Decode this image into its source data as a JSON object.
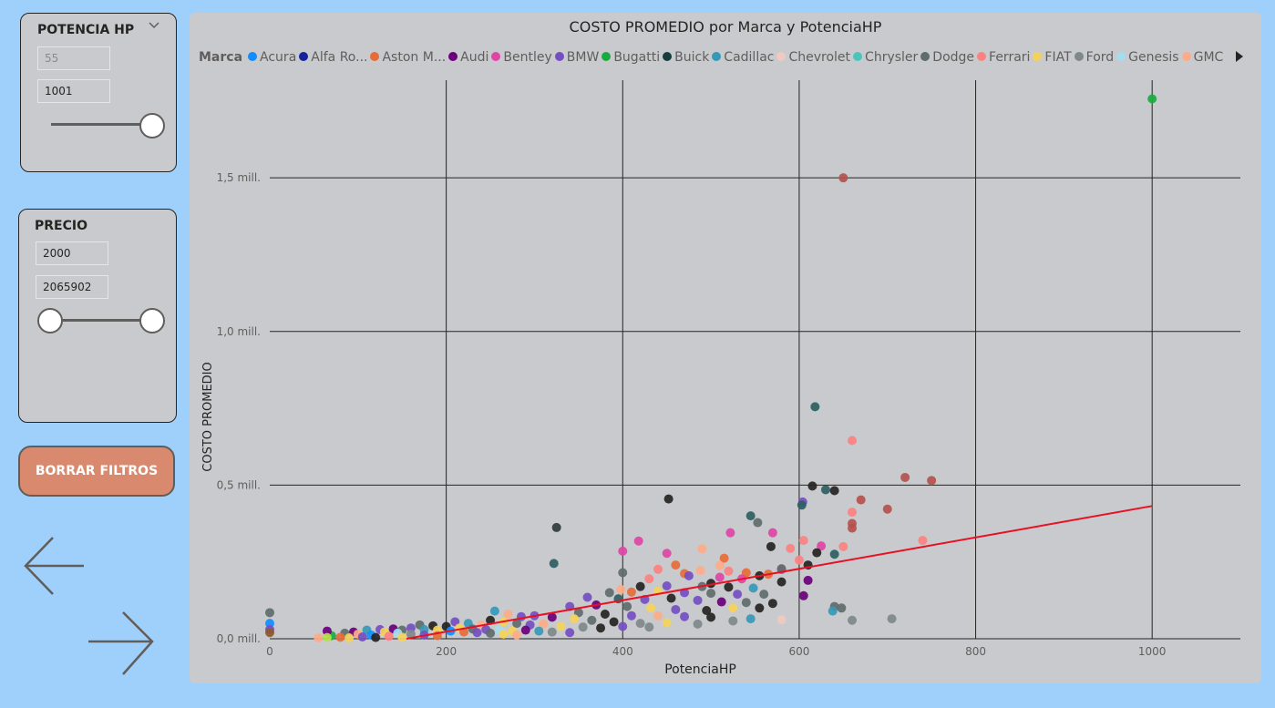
{
  "slicer_hp": {
    "title": "POTENCIA HP",
    "min_value": "55",
    "max_value": "1001",
    "icon": "chevron-down-icon"
  },
  "slicer_precio": {
    "title": "PRECIO",
    "min_value": "2000",
    "max_value": "2065902"
  },
  "clear_button": {
    "label": "BORRAR FILTROS",
    "color": "#d98a6e"
  },
  "nav": {
    "back_icon": "arrow-left-icon",
    "forward_icon": "arrow-right-icon"
  },
  "chart": {
    "title": "COSTO PROMEDIO por Marca y PotenciaHP",
    "legend_label": "Marca",
    "legend": [
      {
        "name": "Acura",
        "color": "#118dff"
      },
      {
        "name": "Alfa Ro...",
        "color": "#12239e"
      },
      {
        "name": "Aston M...",
        "color": "#e66c37"
      },
      {
        "name": "Audi",
        "color": "#6b007b"
      },
      {
        "name": "Bentley",
        "color": "#e044a7"
      },
      {
        "name": "BMW",
        "color": "#744ec2"
      },
      {
        "name": "Bugatti",
        "color": "#1aab40"
      },
      {
        "name": "Buick",
        "color": "#163d3e"
      },
      {
        "name": "Cadillac",
        "color": "#3599b8"
      },
      {
        "name": "Chevrolet",
        "color": "#f0c9c0"
      },
      {
        "name": "Chrysler",
        "color": "#4ac5bb"
      },
      {
        "name": "Dodge",
        "color": "#5f6b6d"
      },
      {
        "name": "Ferrari",
        "color": "#fb8281"
      },
      {
        "name": "FIAT",
        "color": "#f4d25a"
      },
      {
        "name": "Ford",
        "color": "#7f898a"
      },
      {
        "name": "Genesis",
        "color": "#a4ddee"
      },
      {
        "name": "GMC",
        "color": "#fdab89"
      }
    ],
    "legend_next_icon": "triangle-right-icon"
  },
  "chart_data": {
    "type": "scatter",
    "title": "COSTO PROMEDIO por Marca y PotenciaHP",
    "xlabel": "PotenciaHP",
    "ylabel": "COSTO PROMEDIO",
    "xlim": [
      0,
      1100
    ],
    "ylim": [
      0,
      1800000
    ],
    "x_ticks": [
      0,
      200,
      400,
      600,
      800,
      1000
    ],
    "x_tick_labels": [
      "0",
      "200",
      "400",
      "600",
      "800",
      "1000"
    ],
    "y_ticks": [
      0,
      500000,
      1000000,
      1500000
    ],
    "y_tick_labels": [
      "0,0 mill.",
      "0,5 mill.",
      "1,0 mill.",
      "1,5 mill."
    ],
    "grid": true,
    "trend_line": {
      "color": "#e81123",
      "points": [
        [
          155,
          0
        ],
        [
          1000,
          432000
        ]
      ]
    },
    "points": [
      {
        "x": 1000,
        "y": 1757000,
        "color": "#1aab40"
      },
      {
        "x": 650,
        "y": 1500000,
        "color": "#b3524f"
      },
      {
        "x": 618,
        "y": 755000,
        "color": "#2e5f62"
      },
      {
        "x": 660,
        "y": 645000,
        "color": "#fb8281"
      },
      {
        "x": 720,
        "y": 525000,
        "color": "#b3524f"
      },
      {
        "x": 750,
        "y": 515000,
        "color": "#b3524f"
      },
      {
        "x": 615,
        "y": 497000,
        "color": "#252423"
      },
      {
        "x": 630,
        "y": 485000,
        "color": "#2e5f62"
      },
      {
        "x": 640,
        "y": 482000,
        "color": "#252423"
      },
      {
        "x": 452,
        "y": 455000,
        "color": "#252423"
      },
      {
        "x": 670,
        "y": 452000,
        "color": "#b3524f"
      },
      {
        "x": 604,
        "y": 445000,
        "color": "#744ec2"
      },
      {
        "x": 603,
        "y": 435000,
        "color": "#2e5f62"
      },
      {
        "x": 700,
        "y": 422000,
        "color": "#b3524f"
      },
      {
        "x": 660,
        "y": 412000,
        "color": "#fb8281"
      },
      {
        "x": 545,
        "y": 400000,
        "color": "#2e5f62"
      },
      {
        "x": 660,
        "y": 375000,
        "color": "#b3524f"
      },
      {
        "x": 325,
        "y": 362000,
        "color": "#2e3b3c"
      },
      {
        "x": 660,
        "y": 360000,
        "color": "#b3524f"
      },
      {
        "x": 553,
        "y": 378000,
        "color": "#5f6b6d"
      },
      {
        "x": 570,
        "y": 345000,
        "color": "#e044a7"
      },
      {
        "x": 522,
        "y": 345000,
        "color": "#e044a7"
      },
      {
        "x": 605,
        "y": 320000,
        "color": "#fb8281"
      },
      {
        "x": 740,
        "y": 320000,
        "color": "#fb8281"
      },
      {
        "x": 418,
        "y": 318000,
        "color": "#e044a7"
      },
      {
        "x": 625,
        "y": 302000,
        "color": "#e044a7"
      },
      {
        "x": 650,
        "y": 300000,
        "color": "#fb8281"
      },
      {
        "x": 568,
        "y": 300000,
        "color": "#252423"
      },
      {
        "x": 490,
        "y": 293000,
        "color": "#fdab89"
      },
      {
        "x": 590,
        "y": 294000,
        "color": "#fb8281"
      },
      {
        "x": 400,
        "y": 285000,
        "color": "#e044a7"
      },
      {
        "x": 450,
        "y": 278000,
        "color": "#e044a7"
      },
      {
        "x": 640,
        "y": 275000,
        "color": "#2e5f62"
      },
      {
        "x": 620,
        "y": 280000,
        "color": "#252423"
      },
      {
        "x": 515,
        "y": 262000,
        "color": "#e66c37"
      },
      {
        "x": 600,
        "y": 256000,
        "color": "#fb8281"
      },
      {
        "x": 322,
        "y": 245000,
        "color": "#2e5f62"
      },
      {
        "x": 460,
        "y": 240000,
        "color": "#e66c37"
      },
      {
        "x": 510,
        "y": 238000,
        "color": "#fdab89"
      },
      {
        "x": 440,
        "y": 226000,
        "color": "#fb8281"
      },
      {
        "x": 580,
        "y": 225000,
        "color": "#e044a7"
      },
      {
        "x": 580,
        "y": 228000,
        "color": "#5f6b6d"
      },
      {
        "x": 610,
        "y": 240000,
        "color": "#252423"
      },
      {
        "x": 488,
        "y": 222000,
        "color": "#fdab89"
      },
      {
        "x": 520,
        "y": 220000,
        "color": "#fb8281"
      },
      {
        "x": 400,
        "y": 215000,
        "color": "#5f6b6d"
      },
      {
        "x": 470,
        "y": 212000,
        "color": "#e66c37"
      },
      {
        "x": 565,
        "y": 210000,
        "color": "#e66c37"
      },
      {
        "x": 540,
        "y": 215000,
        "color": "#e66c37"
      },
      {
        "x": 555,
        "y": 205000,
        "color": "#252423"
      },
      {
        "x": 475,
        "y": 205000,
        "color": "#744ec2"
      },
      {
        "x": 430,
        "y": 195000,
        "color": "#fb8281"
      },
      {
        "x": 510,
        "y": 200000,
        "color": "#e044a7"
      },
      {
        "x": 535,
        "y": 195000,
        "color": "#e044a7"
      },
      {
        "x": 610,
        "y": 190000,
        "color": "#6b007b"
      },
      {
        "x": 580,
        "y": 185000,
        "color": "#252423"
      },
      {
        "x": 500,
        "y": 180000,
        "color": "#252423"
      },
      {
        "x": 398,
        "y": 160000,
        "color": "#fdab89"
      },
      {
        "x": 420,
        "y": 170000,
        "color": "#252423"
      },
      {
        "x": 450,
        "y": 172000,
        "color": "#744ec2"
      },
      {
        "x": 490,
        "y": 170000,
        "color": "#5f6b6d"
      },
      {
        "x": 520,
        "y": 168000,
        "color": "#252423"
      },
      {
        "x": 548,
        "y": 165000,
        "color": "#3599b8"
      },
      {
        "x": 385,
        "y": 150000,
        "color": "#5f6b6d"
      },
      {
        "x": 410,
        "y": 152000,
        "color": "#e66c37"
      },
      {
        "x": 440,
        "y": 155000,
        "color": "#f4d25a"
      },
      {
        "x": 470,
        "y": 150000,
        "color": "#744ec2"
      },
      {
        "x": 500,
        "y": 148000,
        "color": "#5f6b6d"
      },
      {
        "x": 530,
        "y": 145000,
        "color": "#744ec2"
      },
      {
        "x": 560,
        "y": 145000,
        "color": "#5f6b6d"
      },
      {
        "x": 605,
        "y": 140000,
        "color": "#6b007b"
      },
      {
        "x": 360,
        "y": 135000,
        "color": "#744ec2"
      },
      {
        "x": 395,
        "y": 130000,
        "color": "#2e5f62"
      },
      {
        "x": 425,
        "y": 128000,
        "color": "#744ec2"
      },
      {
        "x": 455,
        "y": 132000,
        "color": "#252423"
      },
      {
        "x": 485,
        "y": 125000,
        "color": "#744ec2"
      },
      {
        "x": 512,
        "y": 120000,
        "color": "#6b007b"
      },
      {
        "x": 540,
        "y": 118000,
        "color": "#5f6b6d"
      },
      {
        "x": 570,
        "y": 115000,
        "color": "#252423"
      },
      {
        "x": 640,
        "y": 105000,
        "color": "#5f6b6d"
      },
      {
        "x": 648,
        "y": 100000,
        "color": "#5f6b6d"
      },
      {
        "x": 638,
        "y": 90000,
        "color": "#3599b8"
      },
      {
        "x": 340,
        "y": 105000,
        "color": "#744ec2"
      },
      {
        "x": 370,
        "y": 110000,
        "color": "#6b007b"
      },
      {
        "x": 405,
        "y": 105000,
        "color": "#5f6b6d"
      },
      {
        "x": 432,
        "y": 100000,
        "color": "#f4d25a"
      },
      {
        "x": 460,
        "y": 95000,
        "color": "#744ec2"
      },
      {
        "x": 495,
        "y": 92000,
        "color": "#252423"
      },
      {
        "x": 525,
        "y": 100000,
        "color": "#f4d25a"
      },
      {
        "x": 555,
        "y": 100000,
        "color": "#252423"
      },
      {
        "x": 350,
        "y": 85000,
        "color": "#5f6b6d"
      },
      {
        "x": 380,
        "y": 80000,
        "color": "#252423"
      },
      {
        "x": 410,
        "y": 75000,
        "color": "#744ec2"
      },
      {
        "x": 440,
        "y": 75000,
        "color": "#fdab89"
      },
      {
        "x": 470,
        "y": 72000,
        "color": "#744ec2"
      },
      {
        "x": 500,
        "y": 70000,
        "color": "#252423"
      },
      {
        "x": 545,
        "y": 65000,
        "color": "#3599b8"
      },
      {
        "x": 580,
        "y": 62000,
        "color": "#f0c9c0"
      },
      {
        "x": 660,
        "y": 60000,
        "color": "#7f898a"
      },
      {
        "x": 705,
        "y": 65000,
        "color": "#7f898a"
      },
      {
        "x": 525,
        "y": 58000,
        "color": "#7f898a"
      },
      {
        "x": 300,
        "y": 75000,
        "color": "#744ec2"
      },
      {
        "x": 320,
        "y": 70000,
        "color": "#6b007b"
      },
      {
        "x": 345,
        "y": 65000,
        "color": "#f4d25a"
      },
      {
        "x": 365,
        "y": 60000,
        "color": "#5f6b6d"
      },
      {
        "x": 390,
        "y": 55000,
        "color": "#252423"
      },
      {
        "x": 420,
        "y": 50000,
        "color": "#7f898a"
      },
      {
        "x": 450,
        "y": 52000,
        "color": "#f4d25a"
      },
      {
        "x": 485,
        "y": 48000,
        "color": "#7f898a"
      },
      {
        "x": 255,
        "y": 90000,
        "color": "#3599b8"
      },
      {
        "x": 270,
        "y": 80000,
        "color": "#fdab89"
      },
      {
        "x": 285,
        "y": 72000,
        "color": "#744ec2"
      },
      {
        "x": 250,
        "y": 60000,
        "color": "#252423"
      },
      {
        "x": 265,
        "y": 55000,
        "color": "#f4d25a"
      },
      {
        "x": 280,
        "y": 50000,
        "color": "#5f6b6d"
      },
      {
        "x": 295,
        "y": 45000,
        "color": "#744ec2"
      },
      {
        "x": 310,
        "y": 48000,
        "color": "#fdab89"
      },
      {
        "x": 330,
        "y": 40000,
        "color": "#f4d25a"
      },
      {
        "x": 355,
        "y": 38000,
        "color": "#7f898a"
      },
      {
        "x": 375,
        "y": 35000,
        "color": "#252423"
      },
      {
        "x": 400,
        "y": 40000,
        "color": "#744ec2"
      },
      {
        "x": 430,
        "y": 38000,
        "color": "#7f898a"
      },
      {
        "x": 210,
        "y": 55000,
        "color": "#744ec2"
      },
      {
        "x": 225,
        "y": 50000,
        "color": "#3599b8"
      },
      {
        "x": 240,
        "y": 45000,
        "color": "#fdab89"
      },
      {
        "x": 200,
        "y": 40000,
        "color": "#252423"
      },
      {
        "x": 215,
        "y": 35000,
        "color": "#f4d25a"
      },
      {
        "x": 230,
        "y": 32000,
        "color": "#5f6b6d"
      },
      {
        "x": 245,
        "y": 30000,
        "color": "#744ec2"
      },
      {
        "x": 260,
        "y": 28000,
        "color": "#a4ddee"
      },
      {
        "x": 275,
        "y": 25000,
        "color": "#f4d25a"
      },
      {
        "x": 290,
        "y": 28000,
        "color": "#6b007b"
      },
      {
        "x": 305,
        "y": 25000,
        "color": "#3599b8"
      },
      {
        "x": 320,
        "y": 22000,
        "color": "#7f898a"
      },
      {
        "x": 340,
        "y": 20000,
        "color": "#744ec2"
      },
      {
        "x": 170,
        "y": 45000,
        "color": "#5f6b6d"
      },
      {
        "x": 185,
        "y": 42000,
        "color": "#252423"
      },
      {
        "x": 160,
        "y": 35000,
        "color": "#744ec2"
      },
      {
        "x": 175,
        "y": 30000,
        "color": "#3599b8"
      },
      {
        "x": 190,
        "y": 28000,
        "color": "#f4d25a"
      },
      {
        "x": 205,
        "y": 25000,
        "color": "#118dff"
      },
      {
        "x": 220,
        "y": 22000,
        "color": "#e66c37"
      },
      {
        "x": 235,
        "y": 20000,
        "color": "#744ec2"
      },
      {
        "x": 250,
        "y": 18000,
        "color": "#5f6b6d"
      },
      {
        "x": 265,
        "y": 15000,
        "color": "#f4d25a"
      },
      {
        "x": 280,
        "y": 12000,
        "color": "#fdab89"
      },
      {
        "x": 140,
        "y": 32000,
        "color": "#6b007b"
      },
      {
        "x": 150,
        "y": 28000,
        "color": "#5f6b6d"
      },
      {
        "x": 125,
        "y": 30000,
        "color": "#744ec2"
      },
      {
        "x": 110,
        "y": 28000,
        "color": "#3599b8"
      },
      {
        "x": 130,
        "y": 22000,
        "color": "#f4d25a"
      },
      {
        "x": 145,
        "y": 18000,
        "color": "#a4ddee"
      },
      {
        "x": 160,
        "y": 15000,
        "color": "#7f898a"
      },
      {
        "x": 175,
        "y": 12000,
        "color": "#744ec2"
      },
      {
        "x": 190,
        "y": 10000,
        "color": "#e66c37"
      },
      {
        "x": 95,
        "y": 22000,
        "color": "#6b007b"
      },
      {
        "x": 100,
        "y": 15000,
        "color": "#fdab89"
      },
      {
        "x": 115,
        "y": 12000,
        "color": "#118dff"
      },
      {
        "x": 85,
        "y": 18000,
        "color": "#5f6b6d"
      },
      {
        "x": 70,
        "y": 10000,
        "color": "#1aab40"
      },
      {
        "x": 65,
        "y": 25000,
        "color": "#6b007b"
      },
      {
        "x": 80,
        "y": 5000,
        "color": "#e66c37"
      },
      {
        "x": 90,
        "y": 3000,
        "color": "#f4d25a"
      },
      {
        "x": 105,
        "y": 6000,
        "color": "#744ec2"
      },
      {
        "x": 120,
        "y": 4000,
        "color": "#252423"
      },
      {
        "x": 135,
        "y": 8000,
        "color": "#fb8281"
      },
      {
        "x": 150,
        "y": 5000,
        "color": "#f4d25a"
      },
      {
        "x": 55,
        "y": 3000,
        "color": "#fdab89"
      },
      {
        "x": 65,
        "y": 4000,
        "color": "#b6e34b"
      },
      {
        "x": 0,
        "y": 85000,
        "color": "#5f6b6d"
      },
      {
        "x": 0,
        "y": 50000,
        "color": "#118dff"
      },
      {
        "x": 0,
        "y": 30000,
        "color": "#744ec2"
      },
      {
        "x": 0,
        "y": 20000,
        "color": "#8b5a2b"
      }
    ]
  }
}
